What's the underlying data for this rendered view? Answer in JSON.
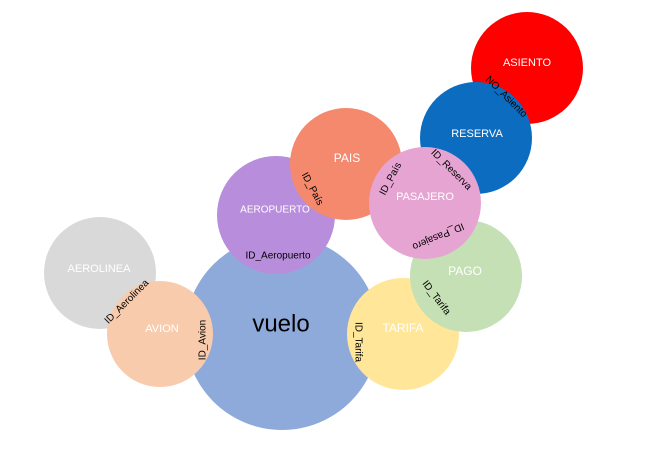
{
  "diagram": {
    "nodes": {
      "vuelo": {
        "label": "vuelo",
        "color": "#8EAADB"
      },
      "aerolinea": {
        "label": "AEROLINEA",
        "color": "#D9D9D9"
      },
      "avion": {
        "label": "AVION",
        "color": "#F8CBAD"
      },
      "aeropuerto": {
        "label": "AEROPUERTO",
        "color": "#B88EDC"
      },
      "pais": {
        "label": "PAIS",
        "color": "#F4896E"
      },
      "pasajero": {
        "label": "PASAJERO",
        "color": "#E6A4D3"
      },
      "reserva": {
        "label": "RESERVA",
        "color": "#0C6CC0"
      },
      "asiento": {
        "label": "ASIENTO",
        "color": "#FF0000"
      },
      "pago": {
        "label": "PAGO",
        "color": "#C5E0B4"
      },
      "tarifa": {
        "label": "TARIFA",
        "color": "#FFE699"
      }
    },
    "keys": {
      "id_aerolinea": "ID_Aerolinea",
      "id_avion": "ID_Avion",
      "id_aeropuerto": "ID_Aeropuerto",
      "id_pais_1": "ID_País",
      "id_pais_2": "ID_País",
      "id_reserva": "ID_Reserva",
      "no_asiento": "NO_Asiento",
      "id_pasajero": "ID_Pasajero",
      "id_tarifa_pago": "ID_Tarifa",
      "id_tarifa_vuelo": "ID_Tarifa"
    }
  }
}
